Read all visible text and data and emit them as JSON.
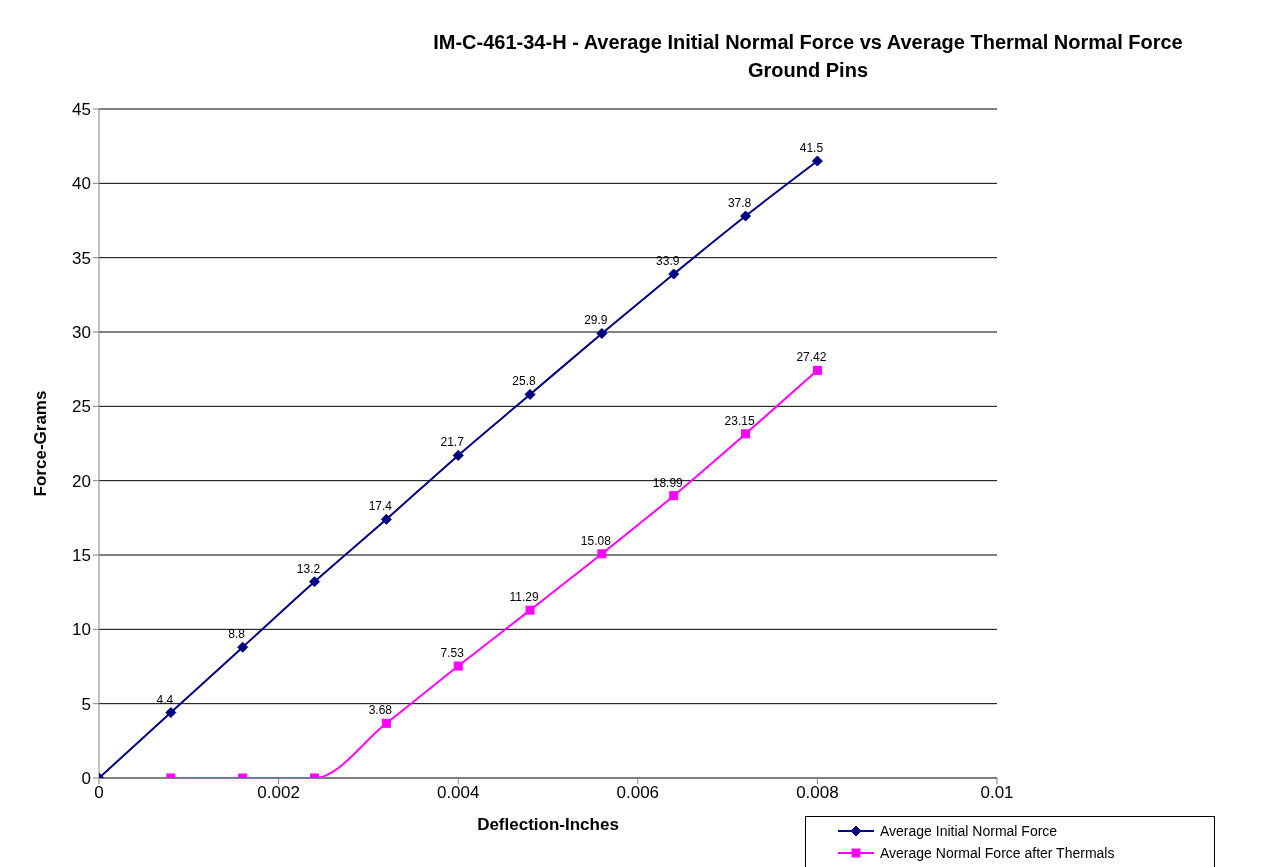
{
  "chart_data": {
    "type": "line",
    "title": "IM-C-461-34-H - Average Initial Normal Force vs Average Thermal Normal Force",
    "subtitle": "Ground Pins",
    "xlabel": "Deflection-Inches",
    "ylabel": "Force-Grams",
    "x": [
      0,
      0.0008,
      0.0016,
      0.0024,
      0.0032,
      0.004,
      0.0048,
      0.0056,
      0.0064,
      0.0072,
      0.008
    ],
    "series": [
      {
        "name": "Average Initial Normal Force",
        "color": "#000080",
        "marker": "diamond",
        "values": [
          0,
          4.4,
          8.8,
          13.2,
          17.4,
          21.7,
          25.8,
          29.9,
          33.9,
          37.8,
          41.5
        ],
        "value_labels": [
          null,
          "4.4",
          "8.8",
          "13.2",
          "17.4",
          "21.7",
          "25.8",
          "29.9",
          "33.9",
          "37.8",
          "41.5"
        ]
      },
      {
        "name": "Average Normal Force after Thermals",
        "color": "#ff00ff",
        "marker": "square",
        "x": [
          0.0008,
          0.0016,
          0.0024,
          0.0032,
          0.004,
          0.0048,
          0.0056,
          0.0064,
          0.0072,
          0.008
        ],
        "values": [
          0,
          0,
          0,
          3.68,
          7.53,
          11.29,
          15.08,
          18.99,
          23.15,
          27.42
        ],
        "value_labels": [
          null,
          null,
          null,
          "3.68",
          "7.53",
          "11.29",
          "15.08",
          "18.99",
          "23.15",
          "27.42"
        ]
      }
    ],
    "xlim": [
      0,
      0.01
    ],
    "xticks": [
      0,
      0.002,
      0.004,
      0.006,
      0.008,
      0.01
    ],
    "ylim": [
      0,
      45
    ],
    "yticks": [
      0,
      5,
      10,
      15,
      20,
      25,
      30,
      35,
      40,
      45
    ],
    "grid": "y",
    "legend": "bottom right"
  }
}
